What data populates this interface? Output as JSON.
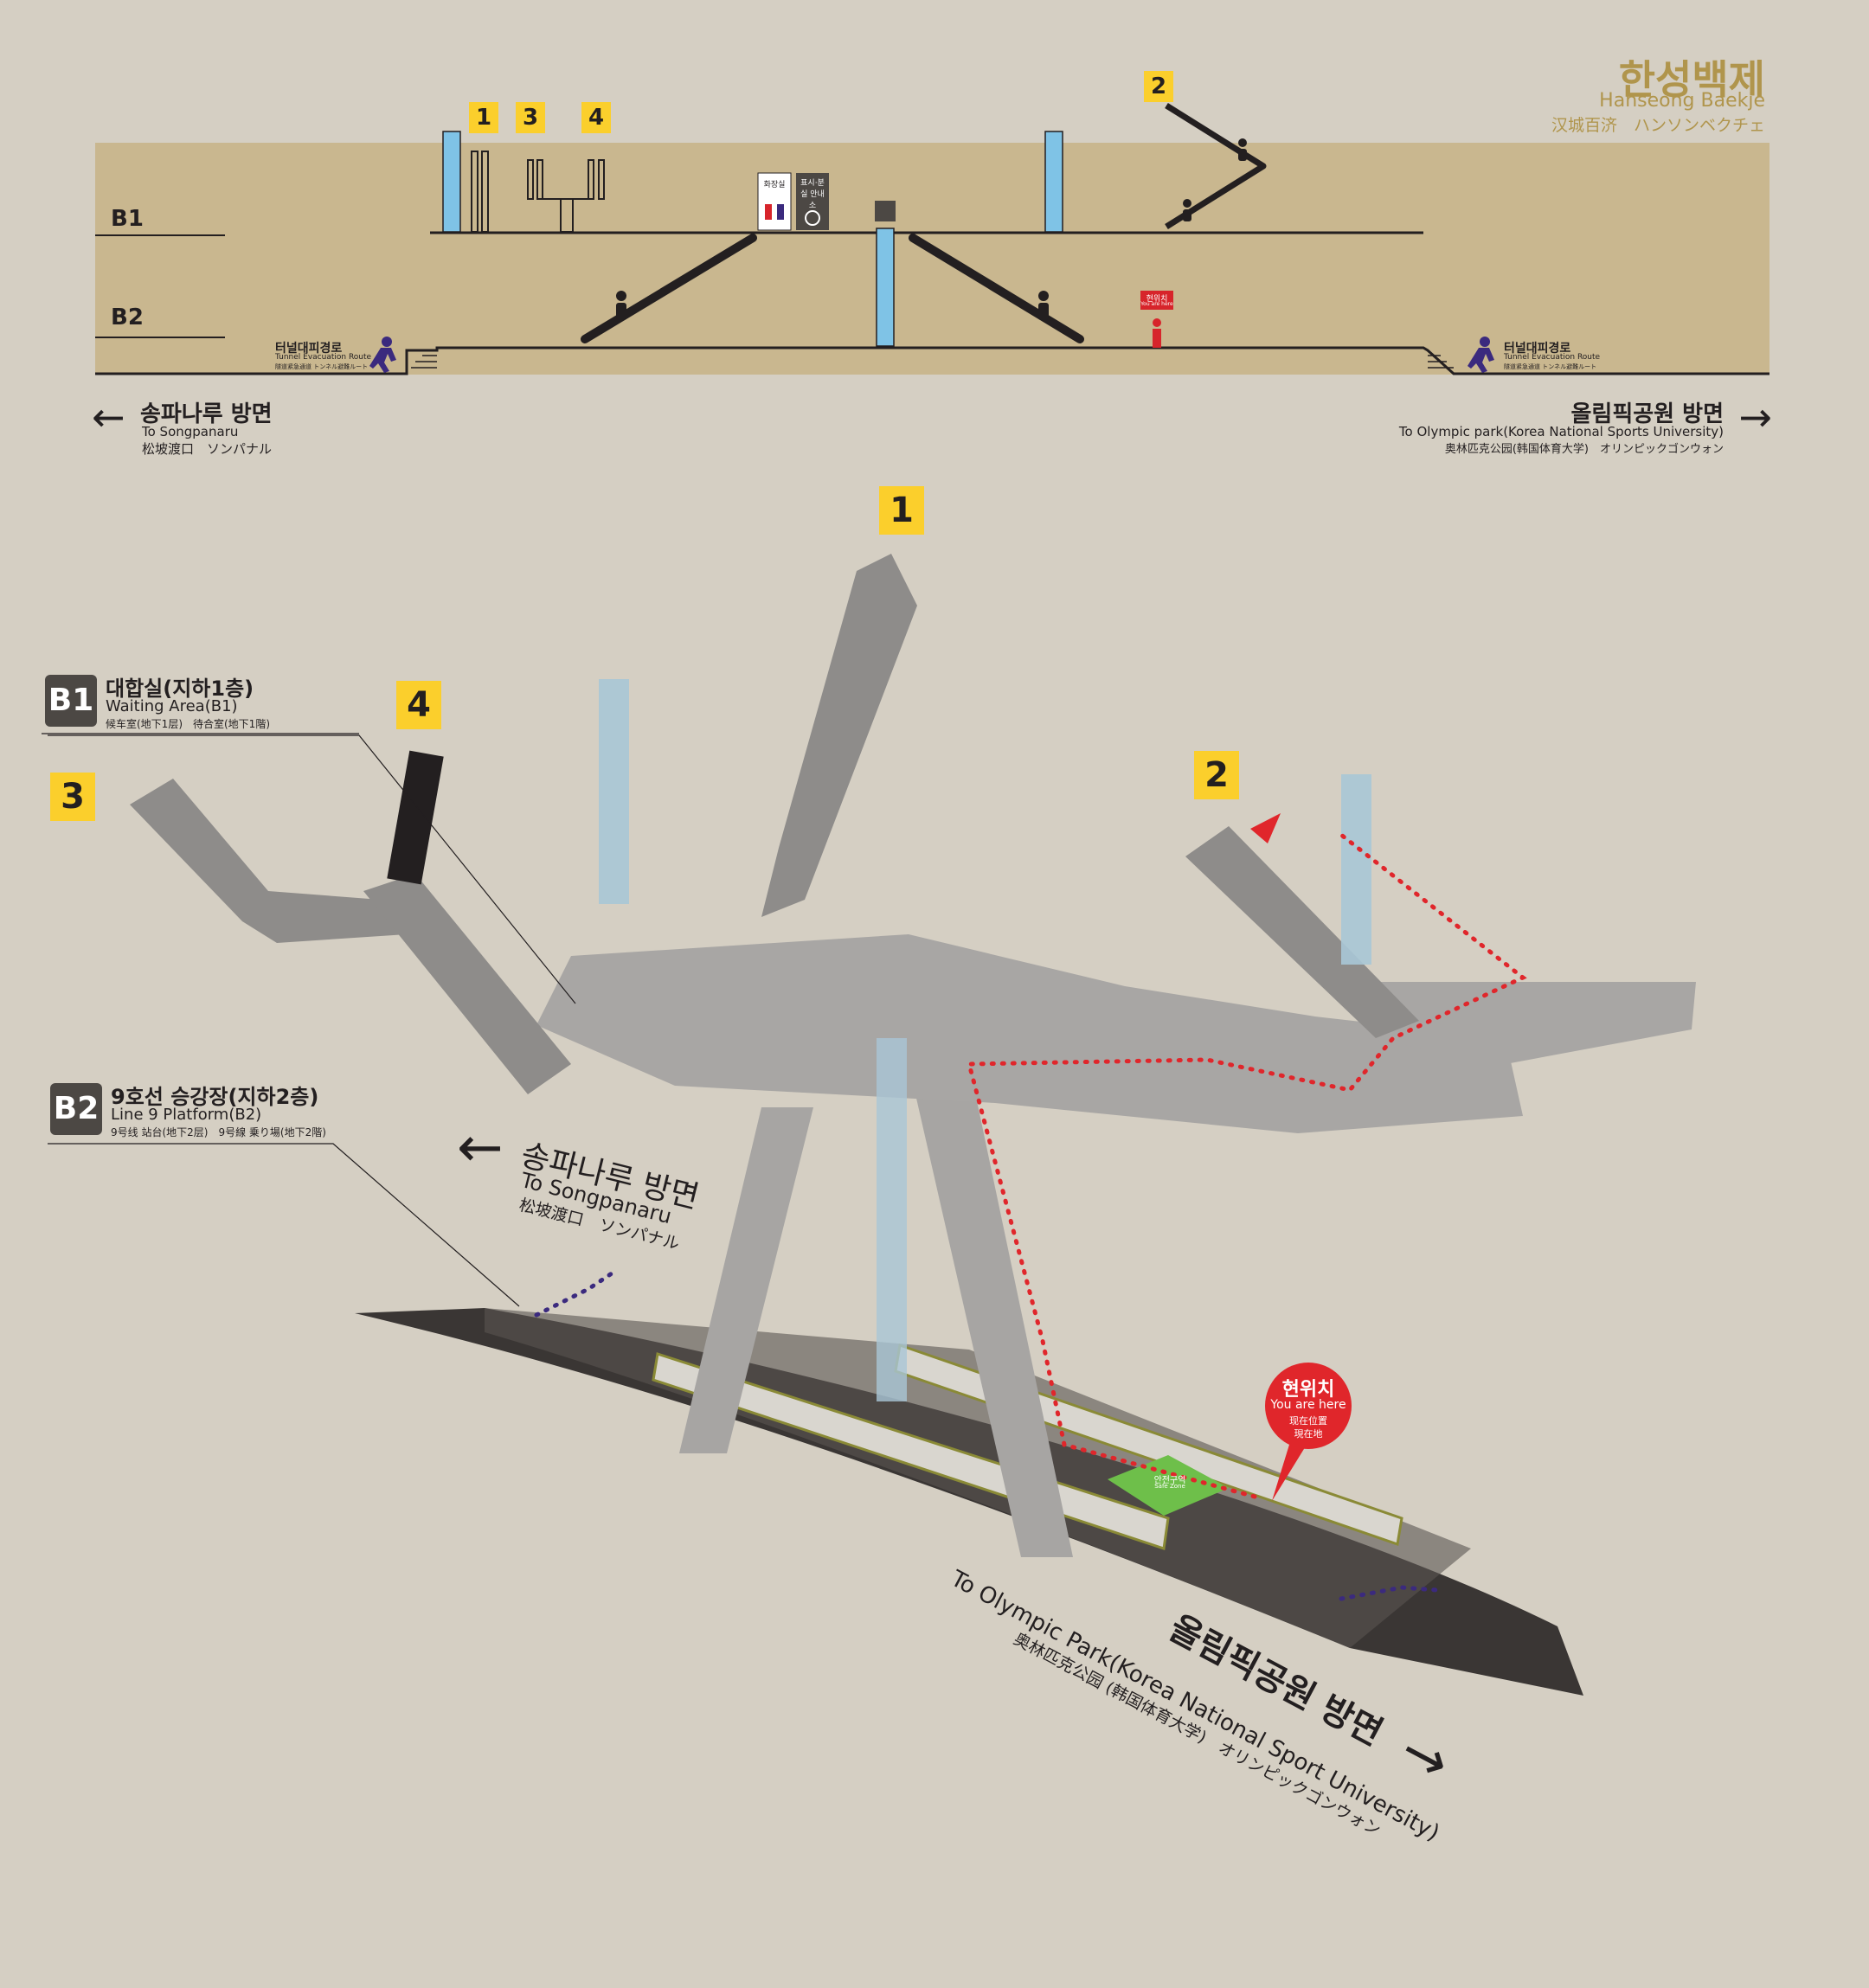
{
  "station": {
    "name_ko": "한성백제",
    "name_en": "Hanseong Baekje",
    "name_cj": "汉城百济　ハンソンベクチェ"
  },
  "section": {
    "level_b1": "B1",
    "level_b2": "B2",
    "exit_1": "1",
    "exit_3": "3",
    "exit_4": "4",
    "exit_2": "2",
    "restroom": "화장실",
    "info_ko": "표시·분실 안내소",
    "current_position": "현위치",
    "current_position_sub": "You are here",
    "tunnel_ko": "터널대피경로",
    "tunnel_en": "Tunnel Evacuation Route",
    "tunnel_cj": "隧道紧急通道 トンネル避難ルート",
    "left_dir_ko": "송파나루 방면",
    "left_dir_en": "To Songpanaru",
    "left_dir_cj": "松坡渡口　ソンパナル",
    "right_dir_ko": "올림픽공원 방면",
    "right_dir_en": "To Olympic park(Korea National Sports University)",
    "right_dir_cj": "奥林匹克公园(韩国体育大学)　オリンピックゴンウォン",
    "arrow_left": "←",
    "arrow_right": "→"
  },
  "map3d": {
    "exit_1": "1",
    "exit_2": "2",
    "exit_3": "3",
    "exit_4": "4",
    "b1_badge": "B1",
    "b1_title_ko": "대합실(지하1층)",
    "b1_title_en": "Waiting Area(B1)",
    "b1_title_cj": "候车室(地下1层)　待合室(地下1階)",
    "b2_badge": "B2",
    "b2_title_ko": "9호선 승강장(지하2층)",
    "b2_title_en": "Line 9 Platform(B2)",
    "b2_title_cj": "9号线 站台(地下2层)　9号線 乗り場(地下2階)",
    "dir_left_ko": "송파나루 방면",
    "dir_left_en": "To Songpanaru",
    "dir_left_cj": "松坡渡口　ソンパナル",
    "dir_right_ko": "올림픽공원 방면",
    "dir_right_en": "To Olympic Park(Korea National Sport University)",
    "dir_right_cj": "奥林匹克公园 (韩国体育大学)　オリンピックゴンウォン",
    "here_ko": "현위치",
    "here_en": "You are here",
    "here_cn": "现在位置",
    "here_jp": "現在地",
    "safe_zone_ko": "안전구역",
    "safe_zone_en": "Safe Zone",
    "arrow_left": "←",
    "arrow_right": "→"
  },
  "colors": {
    "background": "#d5cfc3",
    "section_fill": "#c9b78f",
    "accent_gold": "#b0954c",
    "exit_badge": "#fbcf2c",
    "elevator": "#7fc3e6",
    "route_red": "#e0262b",
    "evacuation_purple": "#3b2a7e",
    "train_yellow": "#c8c43a"
  }
}
